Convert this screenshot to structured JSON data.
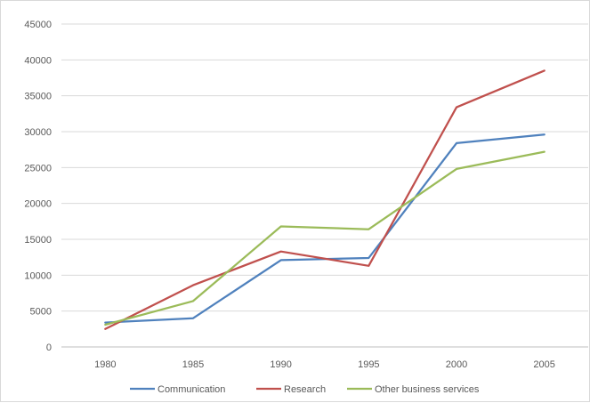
{
  "chart_data": {
    "type": "line",
    "title": "",
    "xlabel": "",
    "ylabel": "",
    "categories": [
      "1980",
      "1985",
      "1990",
      "1995",
      "2000",
      "2005"
    ],
    "ylim": [
      0,
      45000
    ],
    "yticks": [
      "0",
      "5000",
      "10000",
      "15000",
      "20000",
      "25000",
      "30000",
      "35000",
      "40000",
      "45000"
    ],
    "grid": "horizontal",
    "legend_position": "bottom",
    "series": [
      {
        "name": "Communication",
        "color": "#4f81bd",
        "values": [
          3400,
          4000,
          12100,
          12400,
          28400,
          29600
        ]
      },
      {
        "name": "Research",
        "color": "#c0504d",
        "values": [
          2500,
          8600,
          13300,
          11300,
          33400,
          38500
        ]
      },
      {
        "name": "Other business services",
        "color": "#9bbb59",
        "values": [
          3100,
          6400,
          16800,
          16400,
          24800,
          27200
        ]
      }
    ]
  }
}
